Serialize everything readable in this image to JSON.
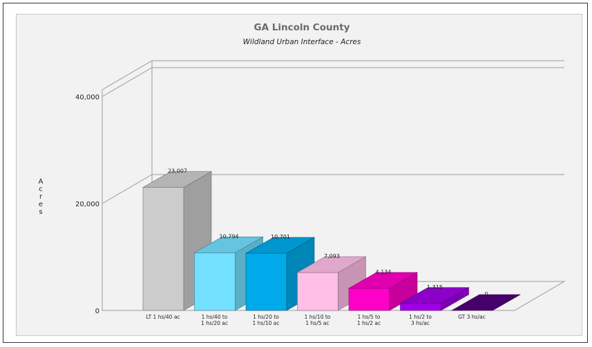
{
  "chart_data": {
    "type": "bar",
    "title": "GA Lincoln County",
    "subtitle": "Wildland Urban Interface - Acres",
    "xlabel": "",
    "ylabel": "Acres",
    "ylim": [
      0,
      40000
    ],
    "yticks": [
      0,
      20000,
      40000
    ],
    "ytick_labels": [
      "0",
      "20,000",
      "40,000"
    ],
    "grid": true,
    "legend": "none",
    "categories": [
      [
        "LT 1 hs/40 ac"
      ],
      [
        "1 hs/40 to",
        "1 hs/20 ac"
      ],
      [
        "1 hs/20 to",
        "1 hs/10 ac"
      ],
      [
        "1 hs/10 to",
        "1 hs/5 ac"
      ],
      [
        "1 hs/5 to",
        "1 hs/2 ac"
      ],
      [
        "1 hs/2 to",
        "3 hs/ac"
      ],
      [
        "GT 3 hs/ac"
      ]
    ],
    "values": [
      23007,
      10794,
      10701,
      7093,
      4134,
      1315,
      0
    ],
    "value_labels": [
      "23,007",
      "10,794",
      "10,701",
      "7,093",
      "4,134",
      "1,315",
      "0"
    ],
    "colors": [
      "#cccccc",
      "#73e0ff",
      "#00aaea",
      "#ffbfe6",
      "#ff00c8",
      "#a000e6",
      "#500078"
    ]
  }
}
